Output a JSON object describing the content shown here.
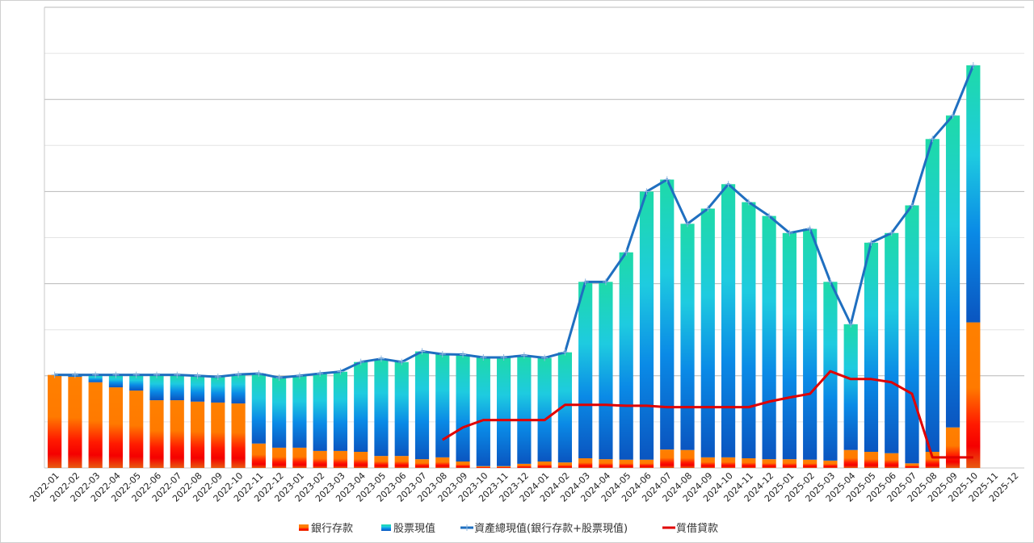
{
  "chart_data": {
    "type": "bar",
    "title": "",
    "xlabel": "",
    "ylabel": "",
    "ylim": [
      0,
      10
    ],
    "grid": true,
    "legend_position": "bottom",
    "categories": [
      "2022-01",
      "2022-02",
      "2022-03",
      "2022-04",
      "2022-05",
      "2022-06",
      "2022-07",
      "2022-08",
      "2022-09",
      "2022-10",
      "2022-11",
      "2022-12",
      "2023-01",
      "2023-02",
      "2023-03",
      "2023-04",
      "2023-05",
      "2023-06",
      "2023-07",
      "2023-08",
      "2023-09",
      "2023-10",
      "2023-11",
      "2023-12",
      "2024-01",
      "2024-02",
      "2024-03",
      "2024-04",
      "2024-05",
      "2024-06",
      "2024-07",
      "2024-08",
      "2024-09",
      "2024-10",
      "2024-11",
      "2024-12",
      "2025-01",
      "2025-02",
      "2025-03",
      "2025-04",
      "2025-05",
      "2025-06",
      "2025-07",
      "2025-08",
      "2025-09",
      "2025-10",
      "2025-11",
      "2025-12"
    ],
    "series": [
      {
        "name": "銀行存款",
        "type": "stacked-bar",
        "color": "#ff7f00",
        "values": [
          2.02,
          1.98,
          1.86,
          1.75,
          1.68,
          1.47,
          1.47,
          1.44,
          1.42,
          1.4,
          0.53,
          0.44,
          0.44,
          0.37,
          0.37,
          0.35,
          0.26,
          0.26,
          0.19,
          0.23,
          0.14,
          0.04,
          0.04,
          0.09,
          0.14,
          0.12,
          0.21,
          0.19,
          0.18,
          0.18,
          0.4,
          0.39,
          0.23,
          0.23,
          0.21,
          0.19,
          0.19,
          0.18,
          0.16,
          0.39,
          0.35,
          0.32,
          0.1,
          0.35,
          0.88,
          3.16,
          null,
          null
        ]
      },
      {
        "name": "股票現值",
        "type": "stacked-bar",
        "color": "#1ab8e0",
        "values": [
          0.0,
          0.04,
          0.16,
          0.27,
          0.34,
          0.55,
          0.55,
          0.56,
          0.56,
          0.63,
          1.52,
          1.52,
          1.56,
          1.68,
          1.72,
          1.95,
          2.11,
          2.04,
          2.34,
          2.24,
          2.32,
          2.36,
          2.36,
          2.35,
          2.25,
          2.39,
          3.83,
          3.85,
          4.5,
          5.82,
          5.86,
          4.91,
          5.4,
          5.93,
          5.56,
          5.28,
          4.91,
          5.01,
          3.88,
          2.73,
          4.54,
          4.78,
          5.6,
          6.79,
          6.77,
          5.58,
          null,
          null
        ]
      },
      {
        "name": "資產總現值(銀行存款+股票現值)",
        "type": "line",
        "color": "#1f6fc0",
        "values": [
          2.02,
          2.02,
          2.02,
          2.02,
          2.02,
          2.02,
          2.02,
          2.0,
          1.98,
          2.03,
          2.05,
          1.96,
          2.0,
          2.05,
          2.09,
          2.3,
          2.37,
          2.3,
          2.53,
          2.47,
          2.46,
          2.4,
          2.4,
          2.44,
          2.39,
          2.51,
          4.04,
          4.04,
          4.68,
          6.0,
          6.26,
          5.3,
          5.63,
          6.16,
          5.77,
          5.47,
          5.1,
          5.19,
          4.04,
          3.12,
          4.89,
          5.1,
          5.7,
          7.14,
          7.65,
          8.74,
          null,
          null
        ]
      },
      {
        "name": "質借貸款",
        "type": "line",
        "color": "#e00000",
        "values": [
          null,
          null,
          null,
          null,
          null,
          null,
          null,
          null,
          null,
          null,
          null,
          null,
          null,
          null,
          null,
          null,
          null,
          null,
          null,
          0.61,
          0.88,
          1.04,
          1.04,
          1.04,
          1.04,
          1.37,
          1.37,
          1.37,
          1.35,
          1.35,
          1.32,
          1.32,
          1.32,
          1.32,
          1.32,
          1.44,
          1.53,
          1.61,
          2.1,
          1.93,
          1.93,
          1.86,
          1.61,
          0.23,
          0.23,
          0.23,
          null,
          null
        ]
      }
    ]
  }
}
